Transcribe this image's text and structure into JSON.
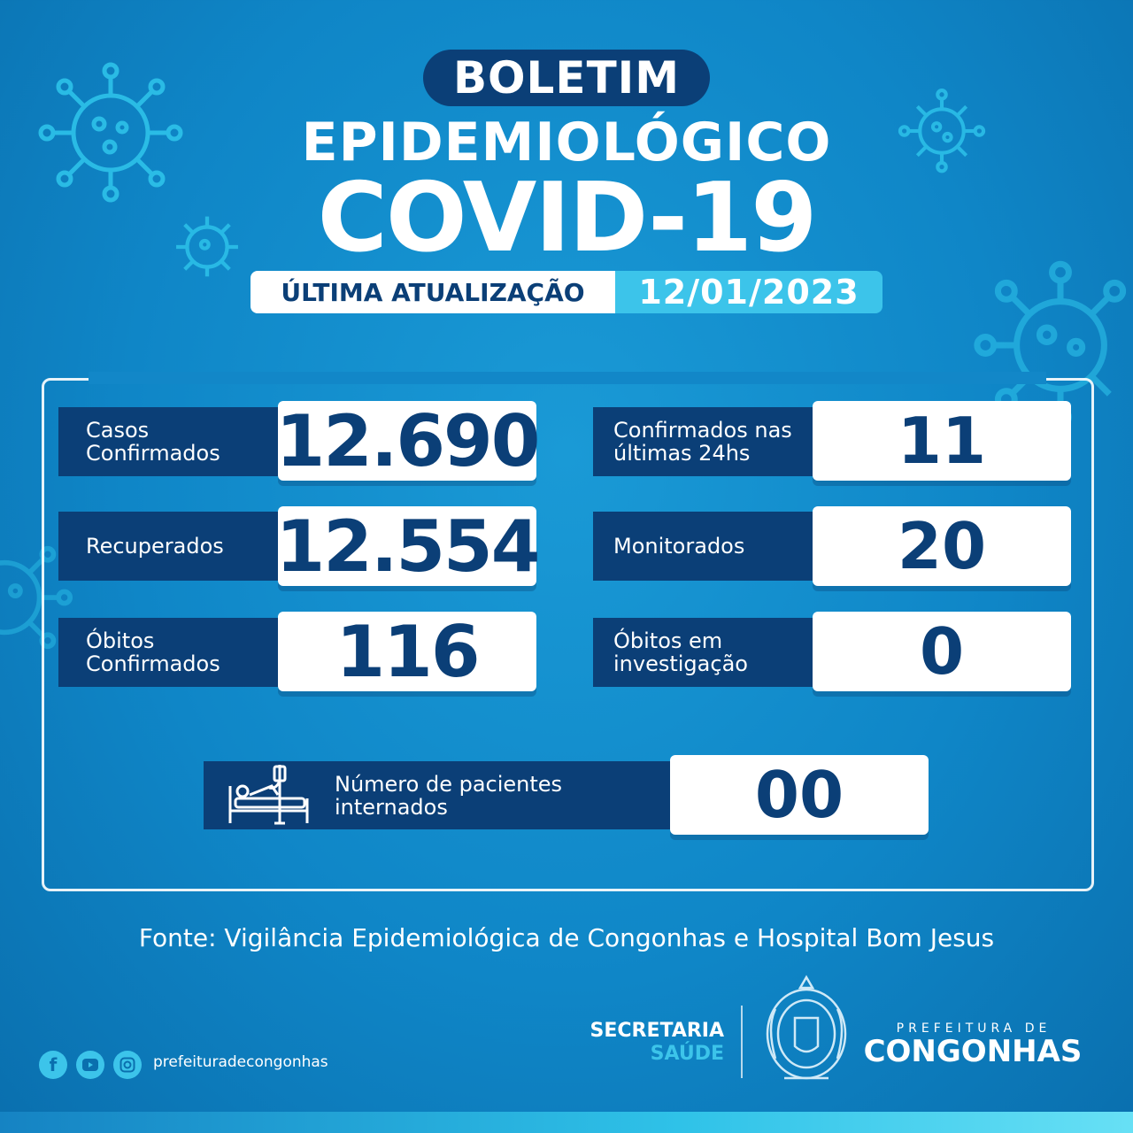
{
  "header": {
    "pill": "BOLETIM",
    "line2": "EPIDEMIOLÓGICO",
    "line3": "COVID-19",
    "update_label": "ÚLTIMA ATUALIZAÇÃO",
    "update_date": "12/01/2023"
  },
  "stats": [
    {
      "label_line1": "Casos",
      "label_line2": "Confirmados",
      "value": "12.690"
    },
    {
      "label_line1": "Recuperados",
      "label_line2": "",
      "value": "12.554"
    },
    {
      "label_line1": "Óbitos",
      "label_line2": "Confirmados",
      "value": "116"
    },
    {
      "label_line1": "Confirmados nas",
      "label_line2": "últimas 24hs",
      "value": "11"
    },
    {
      "label_line1": "Monitorados",
      "label_line2": "",
      "value": "20"
    },
    {
      "label_line1": "Óbitos em",
      "label_line2": "investigação",
      "value": "0"
    }
  ],
  "hospitalized": {
    "label_line1": "Número de pacientes",
    "label_line2": "internados",
    "value": "00",
    "icon": "hospital-bed-icon"
  },
  "footer": {
    "source": "Fonte: Vigilância Epidemiológica de Congonhas e Hospital Bom Jesus",
    "secretaria_line1": "SECRETARIA",
    "secretaria_line2": "SAÚDE",
    "pref_top": "PREFEITURA DE",
    "pref_bottom": "CONGONHAS",
    "social_handle": "prefeituradecongonhas",
    "social_icons": [
      "facebook-icon",
      "youtube-icon",
      "instagram-icon"
    ]
  },
  "colors": {
    "background": "#1287c8",
    "navy": "#0b3f77",
    "accent": "#3cc4ea",
    "white": "#ffffff"
  }
}
